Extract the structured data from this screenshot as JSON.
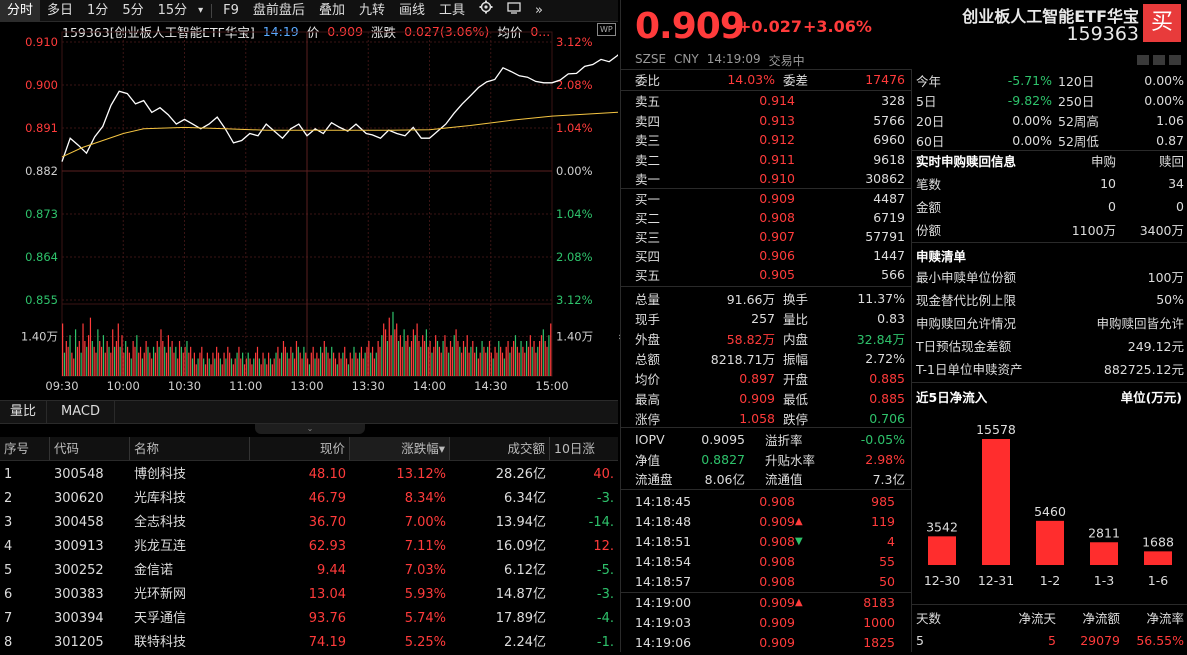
{
  "toolbar": {
    "tabs": [
      "分时",
      "多日",
      "1分",
      "5分",
      "15分"
    ],
    "more_arrow": "▾",
    "actions": [
      "F9",
      "盘前盘后",
      "叠加",
      "九转",
      "画线",
      "工具"
    ],
    "gear_icon": "gear-icon",
    "collapse_glyph": "»"
  },
  "info": {
    "title": "159363[创业板人工智能ETF华宝]",
    "time": "14:19",
    "price_label": "价",
    "price": "0.909",
    "change_label": "涨跌",
    "change": "0.027(3.06%)",
    "avg_label": "均价",
    "avg": "0...",
    "wp_badge": "WP"
  },
  "chart_data": {
    "type": "line",
    "title": "159363[创业板人工智能ETF华宝]",
    "xlabel": "",
    "ylabel": "",
    "prev_close": 0.882,
    "ylim": [
      0.855,
      0.91
    ],
    "y_ticks_left": [
      "0.910",
      "0.900",
      "0.891",
      "0.882",
      "0.873",
      "0.864",
      "0.855"
    ],
    "y_ticks_right": [
      "3.12%",
      "2.08%",
      "1.04%",
      "0.00%",
      "1.04%",
      "2.08%",
      "3.12%"
    ],
    "x_ticks": [
      "09:30",
      "10:00",
      "10:30",
      "11:00",
      "13:00",
      "13:30",
      "14:00",
      "14:30",
      "15:00"
    ],
    "volume_label": "1.40万",
    "grid": true,
    "series": [
      {
        "color": "#ffffff",
        "x": [
          0,
          4,
          8,
          12,
          16,
          20,
          24,
          28,
          32,
          36,
          40,
          44,
          48,
          52,
          56,
          60,
          64,
          68,
          72,
          76,
          80,
          84,
          88,
          92,
          96,
          100,
          104,
          108,
          112,
          116,
          120,
          124,
          128,
          132,
          136,
          140,
          144,
          149,
          152,
          156,
          160,
          164,
          168,
          172,
          176,
          180,
          184,
          188,
          192,
          196,
          200,
          204,
          208,
          212,
          216,
          220,
          224,
          228,
          232,
          236,
          240,
          244,
          248,
          252,
          256,
          260,
          264,
          268,
          272,
          276,
          279
        ],
        "y": [
          0.8845,
          0.8895,
          0.888,
          0.8863,
          0.8898,
          0.892,
          0.8965,
          0.8995,
          0.899,
          0.8968,
          0.8975,
          0.895,
          0.896,
          0.8945,
          0.8925,
          0.8935,
          0.8925,
          0.8915,
          0.8925,
          0.894,
          0.8915,
          0.8885,
          0.889,
          0.8905,
          0.89,
          0.8925,
          0.891,
          0.8895,
          0.8915,
          0.8925,
          0.89,
          0.8915,
          0.8905,
          0.8928,
          0.8918,
          0.891,
          0.8925,
          0.8905,
          0.8902,
          0.8895,
          0.8912,
          0.8905,
          0.89,
          0.8918,
          0.8895,
          0.8895,
          0.891,
          0.8925,
          0.8948,
          0.8968,
          0.8985,
          0.9003,
          0.9015,
          0.902,
          0.9045,
          0.9037,
          0.9028,
          0.9025,
          0.9016,
          0.9013,
          0.9013,
          0.9019,
          0.9032,
          0.9033,
          0.9048,
          0.9052,
          0.9063,
          0.9058,
          0.9071,
          0.9086,
          0.909
        ]
      },
      {
        "color": "#f5c542",
        "x": [
          0,
          10,
          20,
          30,
          40,
          60,
          80,
          100,
          120,
          140,
          160,
          180,
          200,
          220,
          240,
          260,
          279
        ],
        "y": [
          0.8855,
          0.8875,
          0.889,
          0.8905,
          0.8915,
          0.8918,
          0.8915,
          0.8912,
          0.8912,
          0.8912,
          0.8912,
          0.8913,
          0.8922,
          0.8933,
          0.8942,
          0.8947,
          0.8952
        ]
      }
    ],
    "volume": [
      9,
      4,
      6,
      5,
      7,
      4,
      3,
      8,
      5,
      6,
      4,
      9,
      6,
      5,
      7,
      10,
      6,
      5,
      4,
      8,
      6,
      5,
      7,
      4,
      6,
      5,
      4,
      8,
      5,
      6,
      9,
      5,
      7,
      4,
      6,
      5,
      4,
      3,
      6,
      5,
      7,
      4,
      5,
      3,
      4,
      6,
      5,
      4,
      3,
      5,
      4,
      6,
      5,
      8,
      6,
      5,
      4,
      7,
      5,
      6,
      4,
      5,
      3,
      6,
      5,
      4,
      5,
      6,
      4,
      5,
      3,
      4,
      2,
      3,
      4,
      5,
      3,
      2,
      4,
      3,
      2,
      4,
      3,
      5,
      4,
      3,
      2,
      4,
      3,
      5,
      4,
      3,
      2,
      3,
      4,
      5,
      3,
      4,
      2,
      3,
      4,
      3,
      2,
      3,
      4,
      5,
      3,
      2,
      4,
      3,
      2,
      4,
      3,
      2,
      3,
      4,
      5,
      3,
      4,
      6,
      5,
      4,
      3,
      5,
      4,
      3,
      6,
      5,
      4,
      3,
      5,
      4,
      3,
      2,
      4,
      5,
      3,
      4,
      3,
      5,
      4,
      6,
      5,
      4,
      3,
      5,
      4,
      3,
      2,
      4,
      3,
      4,
      5,
      3,
      2,
      4,
      3,
      5,
      4,
      3,
      4,
      5,
      3,
      4,
      5,
      6,
      4,
      5,
      3,
      4,
      6,
      5,
      7,
      9,
      8,
      6,
      10,
      7,
      11,
      8,
      9,
      6,
      7,
      5,
      8,
      6,
      7,
      5,
      6,
      8,
      7,
      9,
      6,
      5,
      7,
      6,
      8,
      5,
      6,
      4,
      5,
      7,
      6,
      5,
      4,
      6,
      7,
      5,
      4,
      6,
      5,
      7,
      8,
      6,
      5,
      4,
      6,
      5,
      7,
      4,
      5,
      6,
      4,
      5,
      3,
      4,
      6,
      5,
      4,
      5,
      6,
      4,
      3,
      5,
      4,
      6,
      5,
      4,
      3,
      5,
      6,
      4,
      5,
      6,
      7,
      5,
      4,
      6,
      5,
      4,
      6,
      5,
      7,
      5,
      6,
      4,
      5,
      6,
      7,
      8,
      6,
      5,
      7,
      9
    ]
  },
  "subtabs": [
    "量比",
    "MACD"
  ],
  "expander_glyph": "⌄",
  "table": {
    "columns": [
      "序号",
      "代码",
      "名称",
      "现价",
      "涨跌幅",
      "成交额",
      "10日涨"
    ],
    "sort_glyph": "▾",
    "rows": [
      [
        "1",
        "300548",
        "博创科技",
        "48.10",
        "13.12%",
        "28.26亿",
        "40."
      ],
      [
        "2",
        "300620",
        "光库科技",
        "46.79",
        "8.34%",
        "6.34亿",
        "-3."
      ],
      [
        "3",
        "300458",
        "全志科技",
        "36.70",
        "7.00%",
        "13.94亿",
        "-14."
      ],
      [
        "4",
        "300913",
        "兆龙互连",
        "62.93",
        "7.11%",
        "16.09亿",
        "12."
      ],
      [
        "5",
        "300252",
        "金信诺",
        "9.44",
        "7.03%",
        "6.12亿",
        "-5."
      ],
      [
        "6",
        "300383",
        "光环新网",
        "13.04",
        "5.93%",
        "14.87亿",
        "-3."
      ],
      [
        "7",
        "300394",
        "天孚通信",
        "93.76",
        "5.74%",
        "17.89亿",
        "-4."
      ],
      [
        "8",
        "301205",
        "联特科技",
        "74.19",
        "5.25%",
        "2.24亿",
        "-1."
      ]
    ]
  },
  "quote": {
    "price": "0.909",
    "change": "+0.027",
    "pct": "+3.06%",
    "name": "创业板人工智能ETF华宝",
    "code": "159363",
    "buy_button": "买",
    "market": "SZSE",
    "currency": "CNY",
    "time": "14:19:09",
    "status": "交易中",
    "weibi_label": "委比",
    "weibi": "14.03%",
    "weicha_label": "委差",
    "weicha": "17476",
    "asks": [
      [
        "卖五",
        "0.914",
        "328"
      ],
      [
        "卖四",
        "0.913",
        "5766"
      ],
      [
        "卖三",
        "0.912",
        "6960"
      ],
      [
        "卖二",
        "0.911",
        "9618"
      ],
      [
        "卖一",
        "0.910",
        "30862"
      ]
    ],
    "bids": [
      [
        "买一",
        "0.909",
        "4487"
      ],
      [
        "买二",
        "0.908",
        "6719"
      ],
      [
        "买三",
        "0.907",
        "57791"
      ],
      [
        "买四",
        "0.906",
        "1447"
      ],
      [
        "买五",
        "0.905",
        "566"
      ]
    ],
    "stats": [
      [
        "总量",
        "91.66万",
        "换手",
        "11.37%"
      ],
      [
        "现手",
        "257",
        "量比",
        "0.83"
      ],
      [
        "外盘",
        "58.82万",
        "内盘",
        "32.84万"
      ],
      [
        "总额",
        "8218.71万",
        "振幅",
        "2.72%"
      ],
      [
        "均价",
        "0.897",
        "开盘",
        "0.885"
      ],
      [
        "最高",
        "0.909",
        "最低",
        "0.885"
      ],
      [
        "涨停",
        "1.058",
        "跌停",
        "0.706"
      ]
    ],
    "iopv": [
      [
        "IOPV",
        "0.9095",
        "溢折率",
        "-0.05%"
      ],
      [
        "净值",
        "0.8827",
        "升贴水率",
        "2.98%"
      ],
      [
        "流通盘",
        "8.06亿",
        "流通值",
        "7.3亿"
      ]
    ],
    "ticks": [
      [
        "14:18:45",
        "0.908",
        "",
        "985"
      ],
      [
        "14:18:48",
        "0.909",
        "up",
        "119"
      ],
      [
        "14:18:51",
        "0.908",
        "down",
        "4"
      ],
      [
        "14:18:54",
        "0.908",
        "",
        "55"
      ],
      [
        "14:18:57",
        "0.908",
        "",
        "50"
      ],
      [
        "14:19:00",
        "0.909",
        "up",
        "8183"
      ],
      [
        "14:19:03",
        "0.909",
        "",
        "1000"
      ],
      [
        "14:19:06",
        "0.909",
        "",
        "1825"
      ]
    ]
  },
  "perf": [
    [
      "今年",
      "-5.71%",
      "120日",
      "0.00%"
    ],
    [
      "5日",
      "-9.82%",
      "250日",
      "0.00%"
    ],
    [
      "20日",
      "0.00%",
      "52周高",
      "1.06"
    ],
    [
      "60日",
      "0.00%",
      "52周低",
      "0.87"
    ]
  ],
  "redeem": {
    "title": "实时申购赎回信息",
    "col1": "申购",
    "col2": "赎回",
    "rows": [
      [
        "笔数",
        "10",
        "34"
      ],
      [
        "金额",
        "0",
        "0"
      ],
      [
        "份额",
        "1100万",
        "3400万"
      ]
    ]
  },
  "list": {
    "title": "申赎清单",
    "rows": [
      [
        "最小申赎单位份额",
        "100万"
      ],
      [
        "现金替代比例上限",
        "50%"
      ],
      [
        "申购赎回允许情况",
        "申购赎回皆允许"
      ],
      [
        "T日预估现金差额",
        "249.12元"
      ],
      [
        "T-1日单位申赎资产",
        "882725.12元"
      ]
    ]
  },
  "flow": {
    "title": "近5日净流入",
    "unit": "单位(万元)",
    "labels": [
      "12-30",
      "12-31",
      "1-2",
      "1-3",
      "1-6"
    ],
    "values": [
      3542,
      15578,
      5460,
      2811,
      1688
    ],
    "footer_headers": [
      "天数",
      "净流天",
      "净流额",
      "净流率"
    ],
    "footer_values": [
      "5",
      "5",
      "29079",
      "56.55%"
    ]
  },
  "colors": {
    "up": "#ff3b3b",
    "down": "#2ec26b",
    "avg_line": "#f5c542",
    "bar": "#ff2d2d"
  }
}
